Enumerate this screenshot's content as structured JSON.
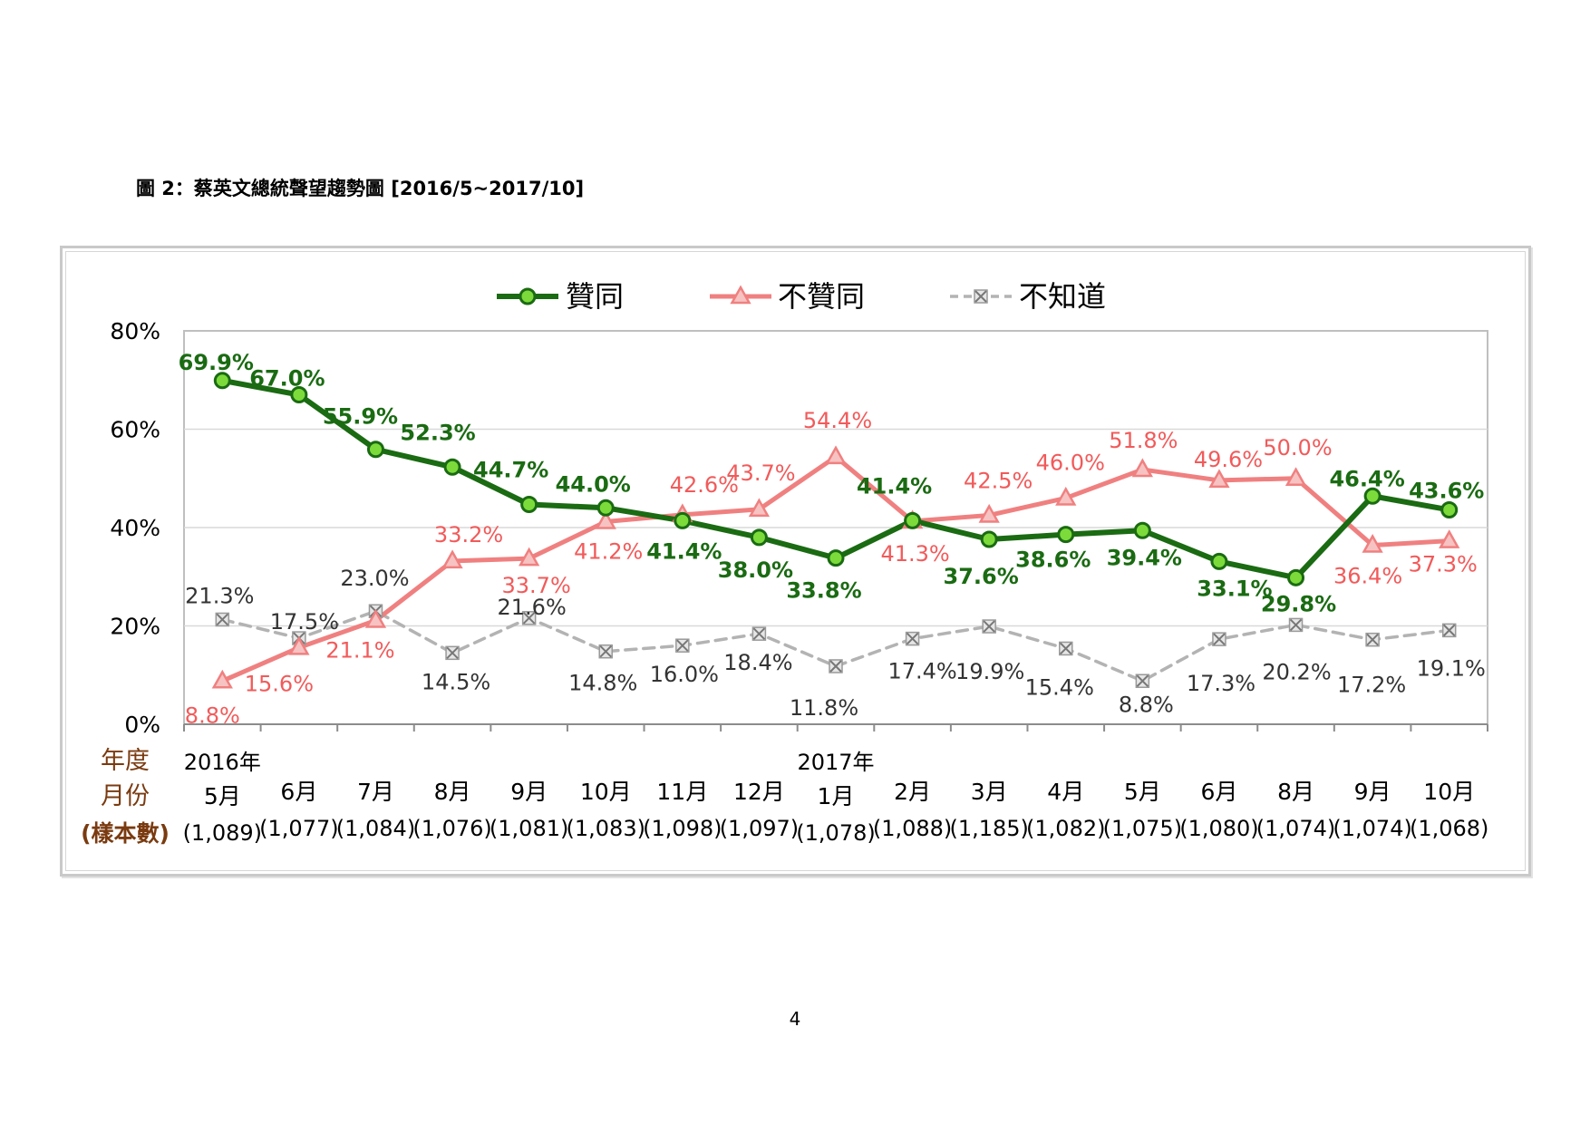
{
  "figure_title": "圖 2：蔡英文總統聲望趨勢圖 [2016/5~2017/10]",
  "page_number": "4",
  "colors": {
    "approve": "#1a6b12",
    "approve_marker_fill": "#7cdb3a",
    "disapprove": "#f08080",
    "disapprove_label": "#f25a5a",
    "unknown": "#b3b3b3",
    "unknown_label": "#333333",
    "axis_title": "#7a3b10"
  },
  "chart_data": {
    "type": "line",
    "title": "",
    "ylim": [
      0,
      80
    ],
    "y_ticks": [
      "0%",
      "20%",
      "40%",
      "60%",
      "80%"
    ],
    "grid": true,
    "legend_position": "top-center",
    "axis_title_lines": [
      "年度",
      "月份",
      "(樣本數)"
    ],
    "year_labels": [
      "2016年",
      "",
      "",
      "",
      "",
      "",
      "",
      "",
      "2017年",
      "",
      "",
      "",
      "",
      "",
      "",
      "",
      ""
    ],
    "categories": [
      "5月",
      "6月",
      "7月",
      "8月",
      "9月",
      "10月",
      "11月",
      "12月",
      "1月",
      "2月",
      "3月",
      "4月",
      "5月",
      "6月",
      "8月",
      "9月",
      "10月"
    ],
    "sample_sizes": [
      "(1,089)",
      "(1,077)",
      "(1,084)",
      "(1,076)",
      "(1,081)",
      "(1,083)",
      "(1,098)",
      "(1,097)",
      "(1,078)",
      "(1,088)",
      "(1,185)",
      "(1,082)",
      "(1,075)",
      "(1,080)",
      "(1,074)",
      "(1,074)",
      "(1,068)"
    ],
    "series": [
      {
        "name": "贊同",
        "marker": "circle",
        "values": [
          69.9,
          67.0,
          55.9,
          52.3,
          44.7,
          44.0,
          41.4,
          38.0,
          33.8,
          41.4,
          37.6,
          38.6,
          39.4,
          33.1,
          29.8,
          46.4,
          43.6
        ],
        "labels": [
          "69.9%",
          "67.0%",
          "55.9%",
          "52.3%",
          "44.7%",
          "44.0%",
          "41.4%",
          "38.0%",
          "33.8%",
          "41.4%",
          "37.6%",
          "38.6%",
          "39.4%",
          "33.1%",
          "29.8%",
          "46.4%",
          "43.6%"
        ]
      },
      {
        "name": "不贊同",
        "marker": "triangle",
        "values": [
          8.8,
          15.6,
          21.1,
          33.2,
          33.7,
          41.2,
          42.6,
          43.7,
          54.4,
          41.3,
          42.5,
          46.0,
          51.8,
          49.6,
          50.0,
          36.4,
          37.3
        ],
        "labels": [
          "8.8%",
          "15.6%",
          "21.1%",
          "33.2%",
          "33.7%",
          "41.2%",
          "42.6%",
          "43.7%",
          "54.4%",
          "41.3%",
          "42.5%",
          "46.0%",
          "51.8%",
          "49.6%",
          "50.0%",
          "36.4%",
          "37.3%"
        ]
      },
      {
        "name": "不知道",
        "marker": "x-square",
        "values": [
          21.3,
          17.5,
          23.0,
          14.5,
          21.6,
          14.8,
          16.0,
          18.4,
          11.8,
          17.4,
          19.9,
          15.4,
          8.8,
          17.3,
          20.2,
          17.2,
          19.1
        ],
        "labels": [
          "21.3%",
          "17.5%",
          "23.0%",
          "14.5%",
          "21.6%",
          "14.8%",
          "16.0%",
          "18.4%",
          "11.8%",
          "17.4%",
          "19.9%",
          "15.4%",
          "8.8%",
          "17.3%",
          "20.2%",
          "17.2%",
          "19.1%"
        ]
      }
    ]
  }
}
